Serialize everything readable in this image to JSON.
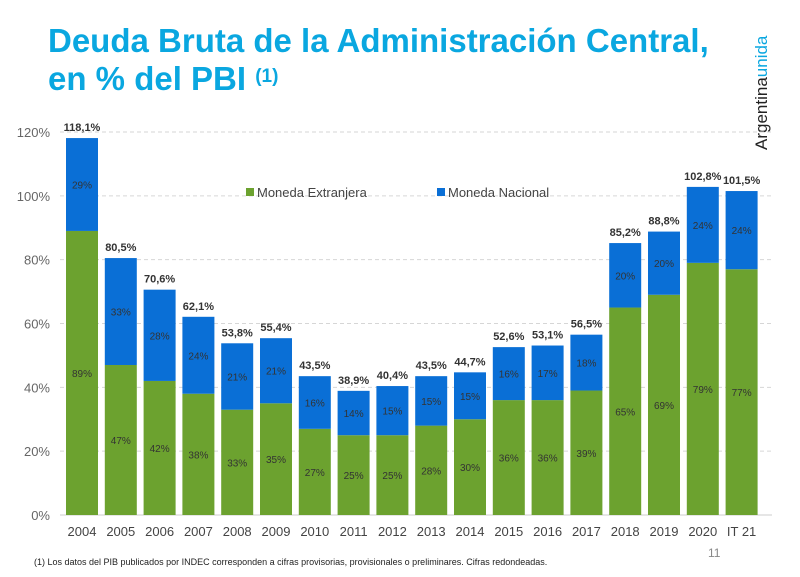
{
  "title_line1": "Deuda Bruta de la Administración Central,",
  "title_line2": "en % del PBI",
  "title_note": "(1)",
  "logo": {
    "word1": "Argentina",
    "word2": "unida"
  },
  "footnote": "(1)   Los datos del PIB publicados por INDEC corresponden a cifras provisorias, provisionales o preliminares. Cifras redondeadas.",
  "page_number": "11",
  "chart_data": {
    "type": "bar",
    "stacked": true,
    "categories": [
      "2004",
      "2005",
      "2006",
      "2007",
      "2008",
      "2009",
      "2010",
      "2011",
      "2012",
      "2013",
      "2014",
      "2015",
      "2016",
      "2017",
      "2018",
      "2019",
      "2020",
      "IT 21"
    ],
    "totals": [
      "118,1%",
      "80,5%",
      "70,6%",
      "62,1%",
      "53,8%",
      "55,4%",
      "43,5%",
      "38,9%",
      "40,4%",
      "43,5%",
      "44,7%",
      "52,6%",
      "53,1%",
      "56,5%",
      "85,2%",
      "88,8%",
      "102,8%",
      "101,5%"
    ],
    "total_values": [
      118.1,
      80.5,
      70.6,
      62.1,
      53.8,
      55.4,
      43.5,
      38.9,
      40.4,
      43.5,
      44.7,
      52.6,
      53.1,
      56.5,
      85.2,
      88.8,
      102.8,
      101.5
    ],
    "series": [
      {
        "name": "Moneda Extranjera",
        "color": "#6ca22f",
        "values": [
          89,
          47,
          42,
          38,
          33,
          35,
          27,
          25,
          25,
          28,
          30,
          36,
          36,
          39,
          65,
          69,
          79,
          77
        ]
      },
      {
        "name": "Moneda Nacional",
        "color": "#0a6fd6",
        "values": [
          29,
          33,
          28,
          24,
          21,
          21,
          16,
          14,
          15,
          15,
          15,
          16,
          17,
          18,
          20,
          20,
          24,
          24
        ]
      }
    ],
    "yticks": [
      "0%",
      "20%",
      "40%",
      "60%",
      "80%",
      "100%",
      "120%"
    ],
    "ylim": [
      0,
      120
    ],
    "grid": true,
    "legend": "top-center"
  }
}
